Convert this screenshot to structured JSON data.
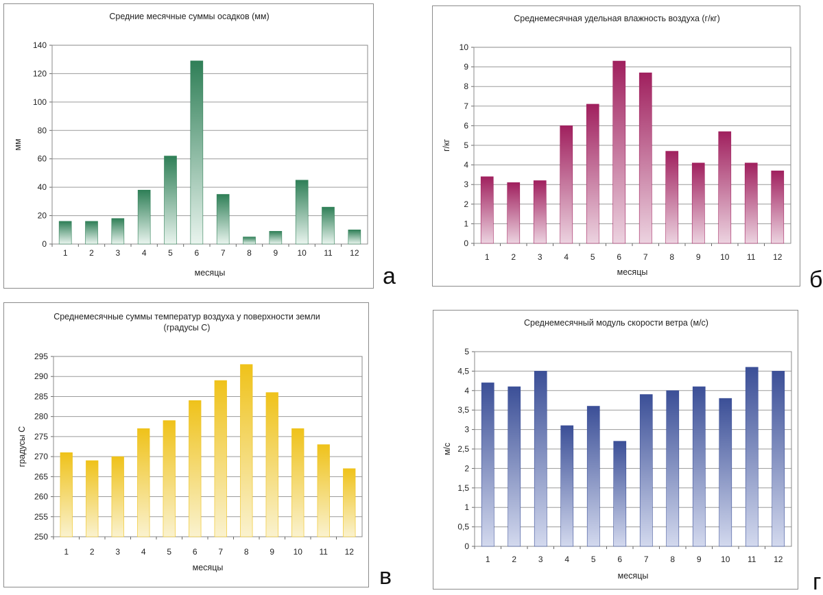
{
  "panels": [
    {
      "letter": "а",
      "chart_data": {
        "type": "bar",
        "title": [
          "Средние месячные суммы осадков (мм)"
        ],
        "xlabel": "месяцы",
        "ylabel": "мм",
        "categories": [
          "1",
          "2",
          "3",
          "4",
          "5",
          "6",
          "7",
          "8",
          "9",
          "10",
          "11",
          "12"
        ],
        "values": [
          16,
          16,
          18,
          38,
          62,
          129,
          35,
          5,
          9,
          45,
          26,
          10
        ],
        "ylim": [
          0,
          140
        ],
        "yticks": [
          "0",
          "20",
          "40",
          "60",
          "80",
          "100",
          "120",
          "140"
        ],
        "grid": true,
        "color_top": "#2f7f57",
        "color_bottom": "#e9f4ee"
      }
    },
    {
      "letter": "б",
      "chart_data": {
        "type": "bar",
        "title": [
          "Среднемесячная удельная влажность воздуха (г/кг)"
        ],
        "xlabel": "месяцы",
        "ylabel": "г/кг",
        "categories": [
          "1",
          "2",
          "3",
          "4",
          "5",
          "6",
          "7",
          "8",
          "9",
          "10",
          "11",
          "12"
        ],
        "values": [
          3.4,
          3.1,
          3.2,
          6.0,
          7.1,
          9.3,
          8.7,
          4.7,
          4.1,
          5.7,
          4.1,
          3.7
        ],
        "ylim": [
          0,
          10
        ],
        "yticks": [
          "0",
          "1",
          "2",
          "3",
          "4",
          "5",
          "6",
          "7",
          "8",
          "9",
          "10"
        ],
        "grid": true,
        "color_top": "#a0205e",
        "color_bottom": "#ecd3e0"
      }
    },
    {
      "letter": "в",
      "chart_data": {
        "type": "bar",
        "title": [
          "Среднемесячные суммы температур воздуха у поверхности земли",
          "(градусы С)"
        ],
        "xlabel": "месяцы",
        "ylabel": "градусы С",
        "categories": [
          "1",
          "2",
          "3",
          "4",
          "5",
          "6",
          "7",
          "8",
          "9",
          "10",
          "11",
          "12"
        ],
        "values": [
          271,
          269,
          270,
          277,
          279,
          284,
          289,
          293,
          286,
          277,
          273,
          267
        ],
        "ylim": [
          250,
          295
        ],
        "yticks": [
          "250",
          "255",
          "260",
          "265",
          "270",
          "275",
          "280",
          "285",
          "290",
          "295"
        ],
        "grid": true,
        "color_top": "#efc21a",
        "color_bottom": "#faf2cf"
      }
    },
    {
      "letter": "г",
      "chart_data": {
        "type": "bar",
        "title": [
          "Среднемесячный модуль скорости ветра (м/с)"
        ],
        "xlabel": "месяцы",
        "ylabel": "м/с",
        "categories": [
          "1",
          "2",
          "3",
          "4",
          "5",
          "6",
          "7",
          "8",
          "9",
          "10",
          "11",
          "12"
        ],
        "values": [
          4.2,
          4.1,
          4.5,
          3.1,
          3.6,
          2.7,
          3.9,
          4.0,
          4.1,
          3.8,
          4.6,
          4.5
        ],
        "ylim": [
          0,
          5
        ],
        "yticks": [
          "0",
          "0,5",
          "1",
          "1,5",
          "2",
          "2,5",
          "3",
          "3,5",
          "4",
          "4,5",
          "5"
        ],
        "grid": true,
        "color_top": "#3b4f97",
        "color_bottom": "#d3d9ee"
      }
    }
  ]
}
